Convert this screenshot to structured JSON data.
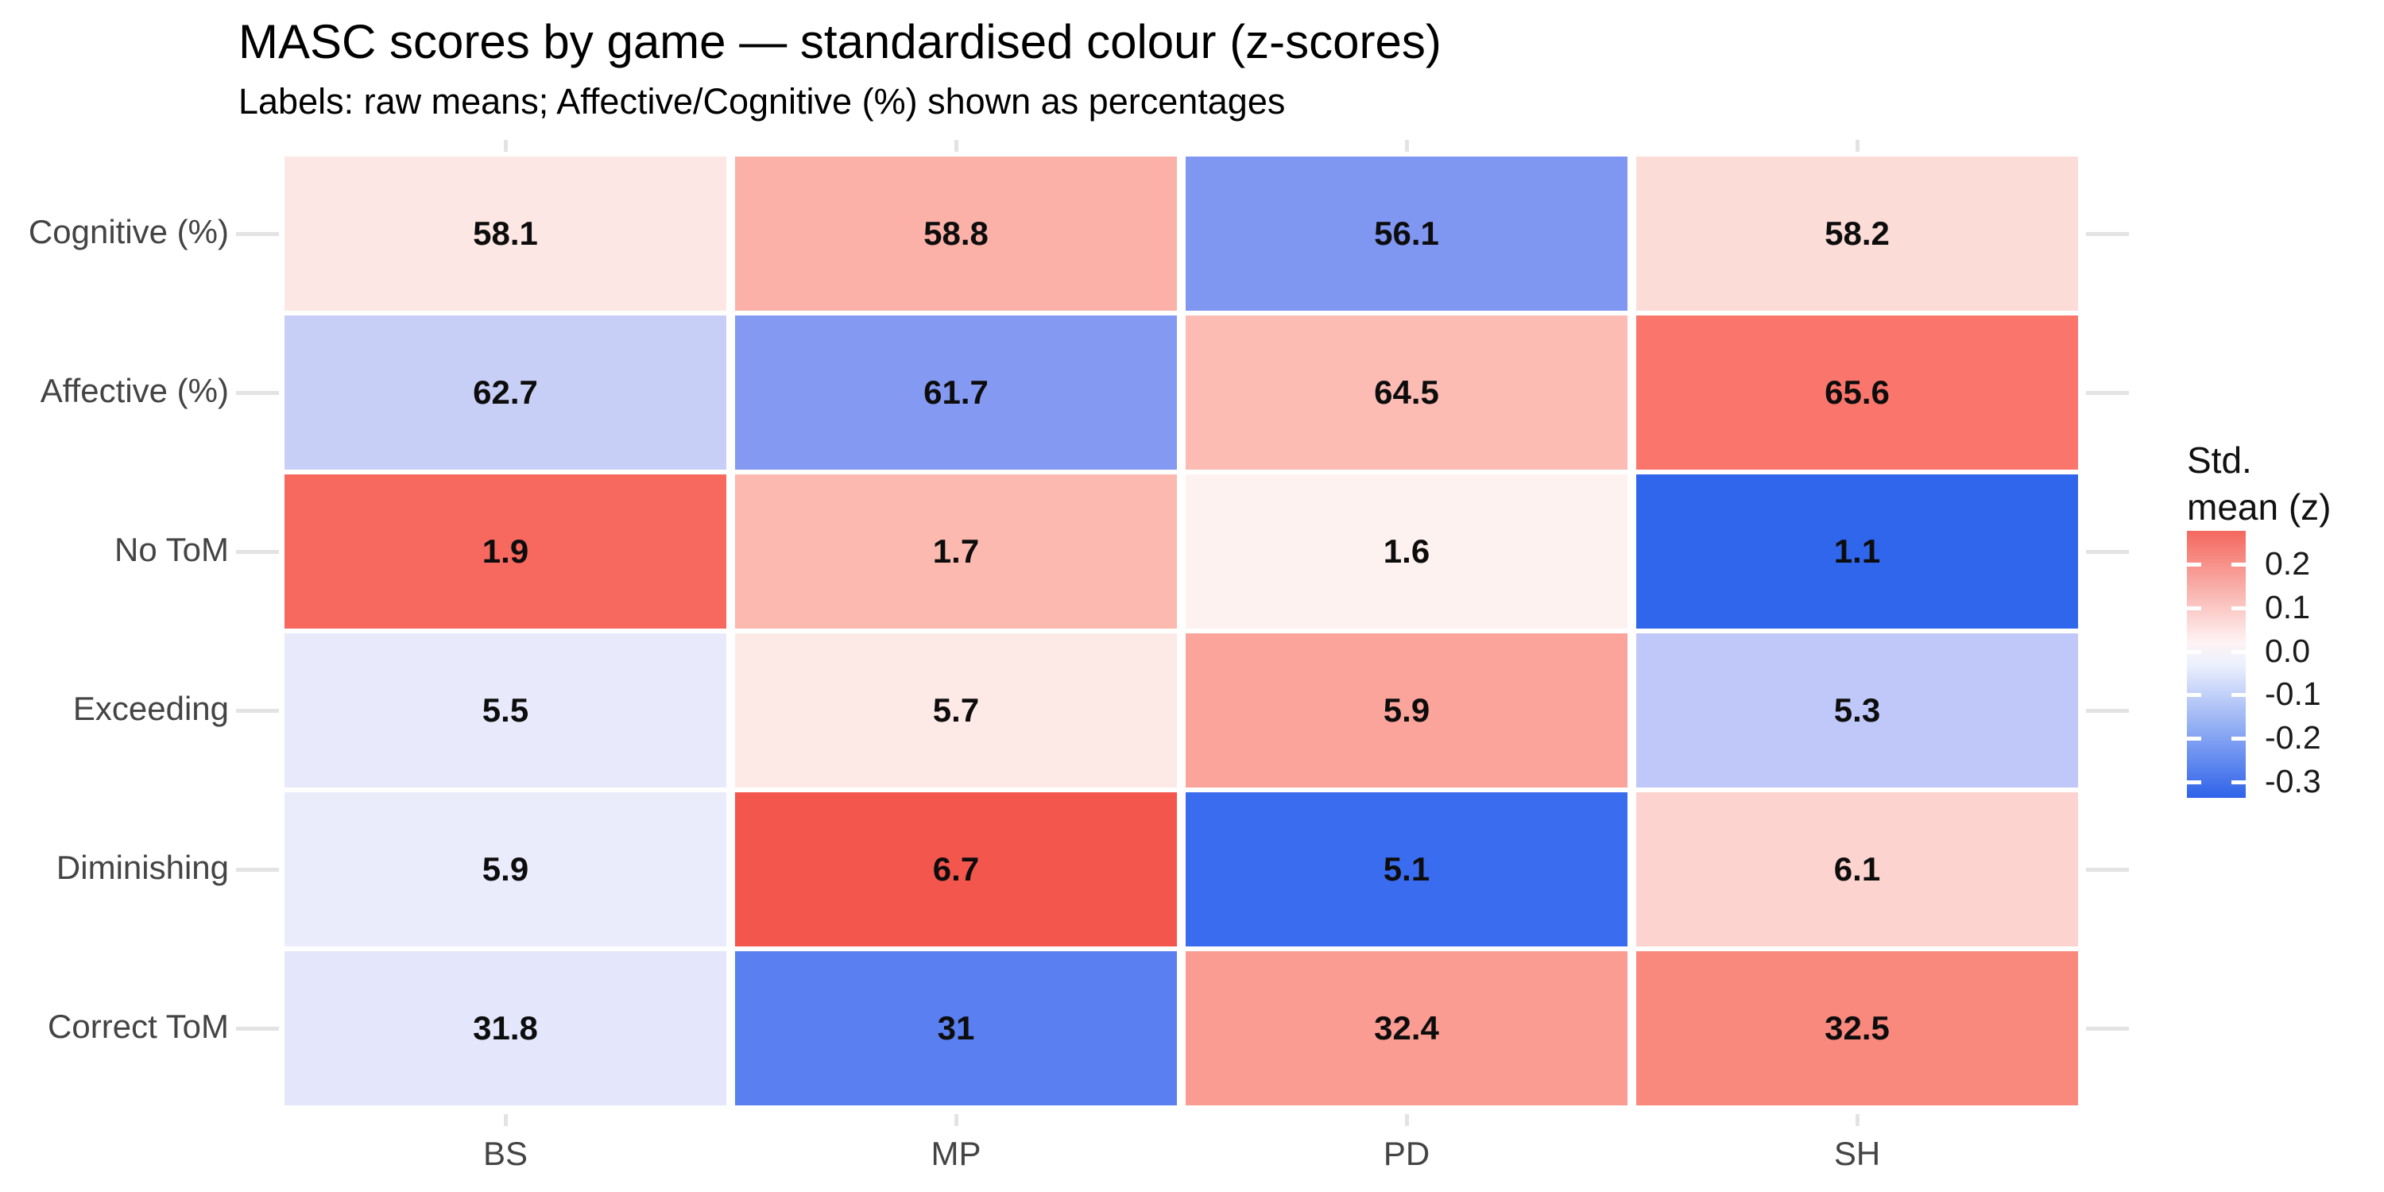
{
  "title": "MASC scores by game — standardised colour (z-scores)",
  "subtitle": "Labels: raw means; Affective/Cognitive (%) shown as percentages",
  "chart_data": {
    "type": "heatmap",
    "x_categories": [
      "BS",
      "MP",
      "PD",
      "SH"
    ],
    "y_categories": [
      "Cognitive (%)",
      "Affective (%)",
      "No ToM",
      "Exceeding",
      "Diminishing",
      "Correct ToM"
    ],
    "cell_labels_note": "labels are raw means; fill colour encodes standardised mean (z)",
    "rows": [
      {
        "label": "Cognitive (%)",
        "cells": [
          {
            "value": "58.1",
            "z": 0.07,
            "color": "#fde7e4"
          },
          {
            "value": "58.8",
            "z": 0.14,
            "color": "#fbb1a8"
          },
          {
            "value": "56.1",
            "z": -0.23,
            "color": "#8097f1"
          },
          {
            "value": "58.2",
            "z": 0.08,
            "color": "#fcdcd7"
          }
        ]
      },
      {
        "label": "Affective (%)",
        "cells": [
          {
            "value": "62.7",
            "z": -0.11,
            "color": "#c8cff7"
          },
          {
            "value": "61.7",
            "z": -0.22,
            "color": "#8499f2"
          },
          {
            "value": "64.5",
            "z": 0.11,
            "color": "#fcbcb4"
          },
          {
            "value": "65.6",
            "z": 0.25,
            "color": "#fa766c"
          }
        ]
      },
      {
        "label": "No ToM",
        "cells": [
          {
            "value": "1.9",
            "z": 0.26,
            "color": "#f7695f"
          },
          {
            "value": "1.7",
            "z": 0.12,
            "color": "#fcb9b0"
          },
          {
            "value": "1.6",
            "z": 0.02,
            "color": "#fef2f0"
          },
          {
            "value": "1.1",
            "z": -0.32,
            "color": "#2f66ec"
          }
        ]
      },
      {
        "label": "Exceeding",
        "cells": [
          {
            "value": "5.5",
            "z": -0.06,
            "color": "#e8eafc"
          },
          {
            "value": "5.7",
            "z": 0.05,
            "color": "#fdeae6"
          },
          {
            "value": "5.9",
            "z": 0.16,
            "color": "#fba49b"
          },
          {
            "value": "5.3",
            "z": -0.13,
            "color": "#bfc8f8"
          }
        ]
      },
      {
        "label": "Diminishing",
        "cells": [
          {
            "value": "5.9",
            "z": -0.05,
            "color": "#ebecfb"
          },
          {
            "value": "6.7",
            "z": 0.3,
            "color": "#f3564d"
          },
          {
            "value": "5.1",
            "z": -0.3,
            "color": "#3a6cf0"
          },
          {
            "value": "6.1",
            "z": 0.08,
            "color": "#fcd3ce"
          }
        ]
      },
      {
        "label": "Correct ToM",
        "cells": [
          {
            "value": "31.8",
            "z": -0.06,
            "color": "#e4e7fb"
          },
          {
            "value": "31",
            "z": -0.27,
            "color": "#5a7ff0"
          },
          {
            "value": "32.4",
            "z": 0.17,
            "color": "#fb9c93"
          },
          {
            "value": "32.5",
            "z": 0.21,
            "color": "#f9887d"
          }
        ]
      }
    ],
    "legend": {
      "title_lines": [
        "Std.",
        "mean (z)"
      ],
      "tick_labels": [
        "0.2",
        "0.1",
        "0.0",
        "-0.1",
        "-0.2",
        "-0.3"
      ],
      "tick_values": [
        0.2,
        0.1,
        0.0,
        -0.1,
        -0.2,
        -0.3
      ],
      "range": [
        0.277,
        -0.337
      ],
      "high_color": "#f4675d",
      "mid_color": "#ffffff",
      "low_color": "#2e62e9",
      "position": "right"
    },
    "layout_hints": {
      "grid": "off",
      "axis_ticks": "all four sides, light gray",
      "value_labels": "bold black, centered in each tile"
    }
  }
}
